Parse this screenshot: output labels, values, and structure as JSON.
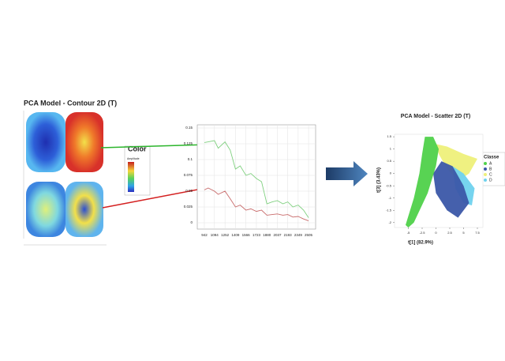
{
  "chart_data": [
    {
      "type": "contour",
      "title": "PCA Model - Contour 2D (T)",
      "legend_title": "Color",
      "colorbar_label": "Amplitude"
    },
    {
      "type": "line",
      "x": [
        942,
        1000,
        1094,
        1150,
        1252,
        1330,
        1409,
        1480,
        1566,
        1640,
        1723,
        1800,
        1880,
        1960,
        2037,
        2120,
        2193,
        2270,
        2349,
        2430,
        2505
      ],
      "series": [
        {
          "color": "#7fd07f",
          "values": [
            0.127,
            0.128,
            0.13,
            0.118,
            0.128,
            0.115,
            0.085,
            0.09,
            0.075,
            0.078,
            0.07,
            0.065,
            0.03,
            0.033,
            0.035,
            0.03,
            0.033,
            0.025,
            0.028,
            0.02,
            0.008
          ]
        },
        {
          "color": "#c86a6a",
          "values": [
            0.052,
            0.055,
            0.05,
            0.045,
            0.05,
            0.038,
            0.025,
            0.028,
            0.02,
            0.022,
            0.018,
            0.02,
            0.012,
            0.013,
            0.014,
            0.012,
            0.013,
            0.009,
            0.01,
            0.006,
            0.003
          ]
        }
      ],
      "xlim": [
        836,
        2611
      ],
      "xticks": [
        942,
        1094,
        1252,
        1409,
        1566,
        1723,
        1880,
        2037,
        2193,
        2349,
        2505
      ],
      "ylim": [
        -0.01,
        0.155
      ],
      "yticks": [
        0,
        0.025,
        0.05,
        0.075,
        0.1,
        0.125,
        0.15
      ],
      "grid": true
    },
    {
      "type": "scatter",
      "title": "PCA Model - Scatter 2D (T)",
      "x_label": "t[1] (82.9%)",
      "y_label": "t[3] (3.43%)",
      "legend_title": "Classe",
      "series": [
        {
          "name": "A",
          "color": "#4fd14a",
          "x": [
            -5.5,
            -4,
            -3,
            -2.5,
            -2,
            -0.5,
            0.5,
            0,
            -1.5,
            -4,
            -5
          ],
          "y": [
            -2.1,
            -1,
            0,
            0.8,
            1.5,
            1.5,
            1,
            0.3,
            -0.8,
            -2,
            -2.2
          ]
        },
        {
          "name": "B",
          "color": "#3b57a8",
          "x": [
            -0.5,
            1,
            3,
            5,
            6,
            4,
            2,
            0
          ],
          "y": [
            0,
            0.5,
            0.3,
            -0.5,
            -1.2,
            -1.8,
            -1.5,
            -0.8
          ]
        },
        {
          "name": "C",
          "color": "#eef07a",
          "x": [
            0,
            2,
            5,
            7.5,
            6,
            4,
            2,
            0.5
          ],
          "y": [
            1.2,
            1.1,
            0.8,
            0.6,
            0,
            -0.3,
            0.2,
            0.8
          ]
        },
        {
          "name": "D",
          "color": "#6fd2ee",
          "x": [
            3,
            5,
            7,
            6.5,
            5,
            3.5
          ],
          "y": [
            0.3,
            0,
            -0.6,
            -1.3,
            -1.2,
            -0.6
          ]
        }
      ],
      "xlim": [
        -7.5,
        8.5
      ],
      "xticks": [
        -5,
        -2.5,
        0,
        2.5,
        5,
        7.5
      ],
      "ylim": [
        -2.2,
        1.6
      ],
      "yticks": [
        -2,
        -1.5,
        -1,
        -0.5,
        0,
        0.5,
        1,
        1.5
      ]
    }
  ]
}
